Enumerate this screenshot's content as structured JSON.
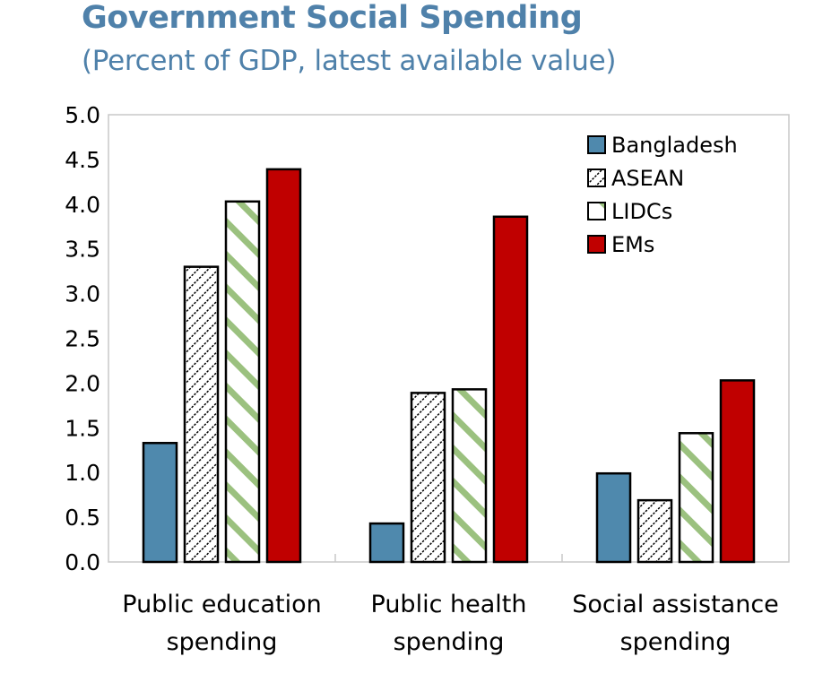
{
  "chart_data": {
    "type": "bar",
    "title": "Government Social Spending",
    "subtitle": "(Percent of GDP, latest available value)",
    "xlabel": "",
    "ylabel": "",
    "ylim": [
      0,
      5
    ],
    "yticks": [
      "0.0",
      "0.5",
      "1.0",
      "1.5",
      "2.0",
      "2.5",
      "3.0",
      "3.5",
      "4.0",
      "4.5",
      "5.0"
    ],
    "ytick_values": [
      0,
      0.5,
      1,
      1.5,
      2,
      2.5,
      3,
      3.5,
      4,
      4.5,
      5
    ],
    "grid": false,
    "legend_position": "top-right",
    "categories": [
      [
        "Public education",
        "spending"
      ],
      [
        "Public health",
        "spending"
      ],
      [
        "Social assistance",
        "spending"
      ]
    ],
    "series": [
      {
        "name": "Bangladesh",
        "values": [
          1.33,
          0.43,
          0.99
        ],
        "color": "#4f89ad",
        "pattern": "solid"
      },
      {
        "name": "ASEAN",
        "values": [
          3.3,
          1.89,
          0.69
        ],
        "color": "#000000",
        "pattern": "diagonal-black"
      },
      {
        "name": "LIDCs",
        "values": [
          4.03,
          1.93,
          1.44
        ],
        "color": "#9bc17f",
        "pattern": "diagonal-green"
      },
      {
        "name": "EMs",
        "values": [
          4.39,
          3.86,
          2.03
        ],
        "color": "#c00000",
        "pattern": "solid"
      }
    ]
  }
}
